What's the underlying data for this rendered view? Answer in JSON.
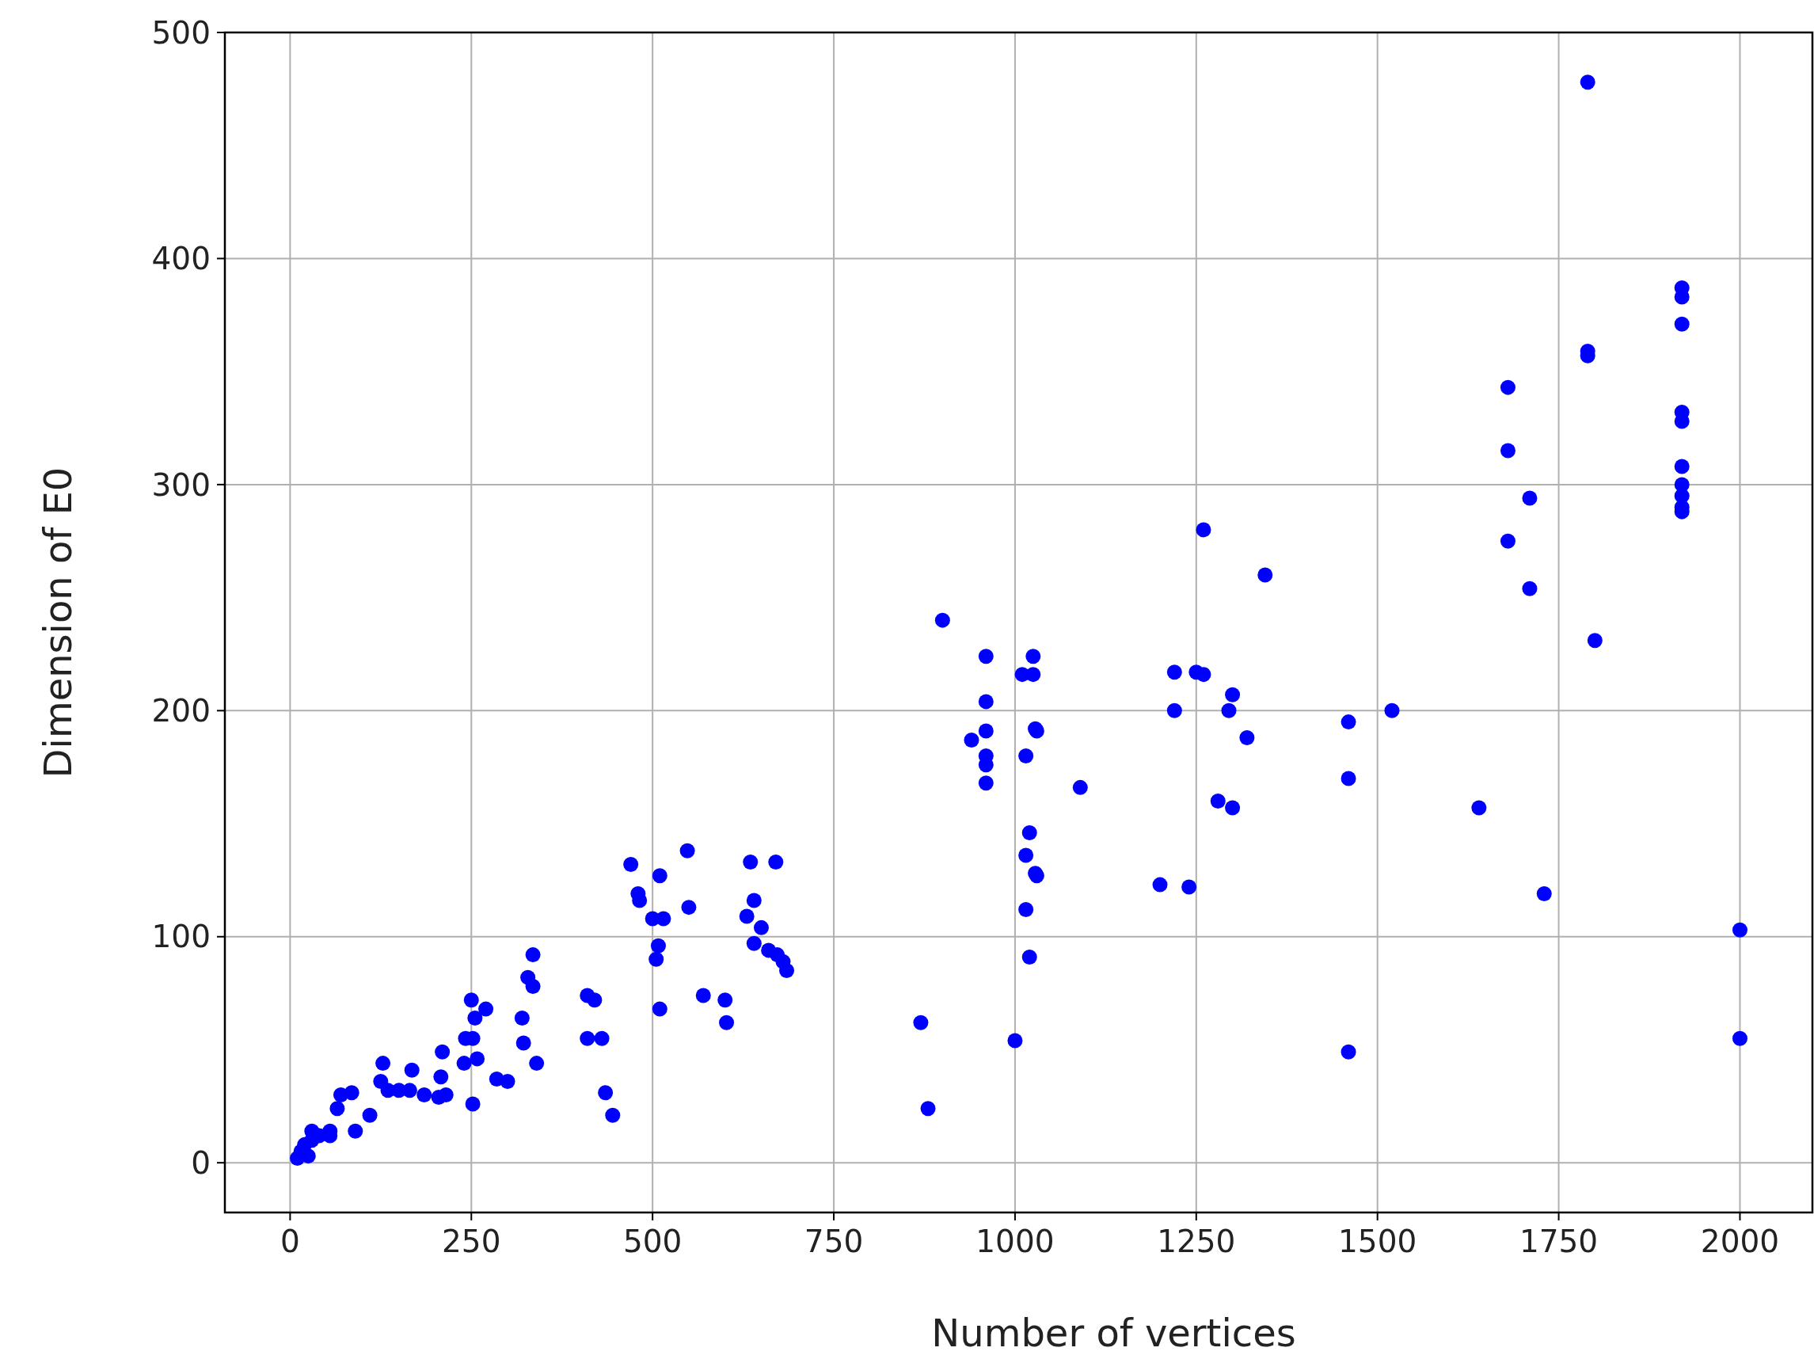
{
  "chart_data": {
    "type": "scatter",
    "xlabel": "Number of vertices",
    "ylabel": "Dimension of E0",
    "xlim": [
      -90,
      2100
    ],
    "ylim": [
      -22,
      500
    ],
    "xticks": [
      0,
      250,
      500,
      750,
      1000,
      1250,
      1500,
      1750,
      2000
    ],
    "yticks": [
      0,
      100,
      200,
      300,
      400,
      500
    ],
    "grid": true,
    "marker": "circle",
    "series": [
      {
        "color": "#0000ff",
        "x": [
          10,
          15,
          20,
          25,
          30,
          30,
          40,
          55,
          55,
          65,
          70,
          85,
          90,
          110,
          125,
          128,
          135,
          150,
          165,
          168,
          185,
          205,
          208,
          210,
          215,
          240,
          242,
          250,
          252,
          252,
          255,
          258,
          270,
          285,
          300,
          320,
          322,
          328,
          335,
          335,
          340,
          410,
          410,
          420,
          430,
          435,
          445,
          470,
          480,
          482,
          500,
          505,
          508,
          510,
          510,
          515,
          548,
          550,
          570,
          600,
          602,
          630,
          635,
          640,
          640,
          650,
          660,
          670,
          672,
          680,
          685,
          870,
          880,
          900,
          940,
          960,
          960,
          960,
          960,
          960,
          960,
          1000,
          1010,
          1015,
          1015,
          1015,
          1020,
          1020,
          1025,
          1025,
          1028,
          1030,
          1028,
          1030,
          1090,
          1200,
          1220,
          1220,
          1240,
          1250,
          1260,
          1260,
          1280,
          1295,
          1300,
          1300,
          1320,
          1345,
          1460,
          1460,
          1460,
          1520,
          1640,
          1680,
          1680,
          1680,
          1710,
          1710,
          1730,
          1790,
          1790,
          1790,
          1800,
          1920,
          1920,
          1920,
          1920,
          1920,
          1920,
          1920,
          1920,
          1920,
          1920,
          2000,
          2000
        ],
        "values": [
          2,
          5,
          8,
          3,
          10,
          14,
          12,
          12,
          14,
          24,
          30,
          31,
          14,
          21,
          36,
          44,
          32,
          32,
          32,
          41,
          30,
          29,
          38,
          49,
          30,
          44,
          55,
          72,
          26,
          55,
          64,
          46,
          68,
          37,
          36,
          64,
          53,
          82,
          92,
          78,
          44,
          74,
          55,
          72,
          55,
          31,
          21,
          132,
          119,
          116,
          108,
          90,
          96,
          68,
          127,
          108,
          138,
          113,
          74,
          72,
          62,
          109,
          133,
          116,
          97,
          104,
          94,
          133,
          92,
          89,
          85,
          62,
          24,
          240,
          187,
          224,
          204,
          191,
          180,
          176,
          168,
          54,
          216,
          180,
          136,
          112,
          146,
          91,
          224,
          216,
          192,
          191,
          128,
          127,
          166,
          123,
          217,
          200,
          122,
          217,
          216,
          280,
          160,
          200,
          207,
          157,
          188,
          260,
          195,
          170,
          49,
          200,
          157,
          343,
          315,
          275,
          294,
          254,
          119,
          478,
          359,
          357,
          231,
          387,
          383,
          371,
          332,
          328,
          308,
          300,
          295,
          290,
          288,
          103,
          55
        ]
      }
    ]
  }
}
